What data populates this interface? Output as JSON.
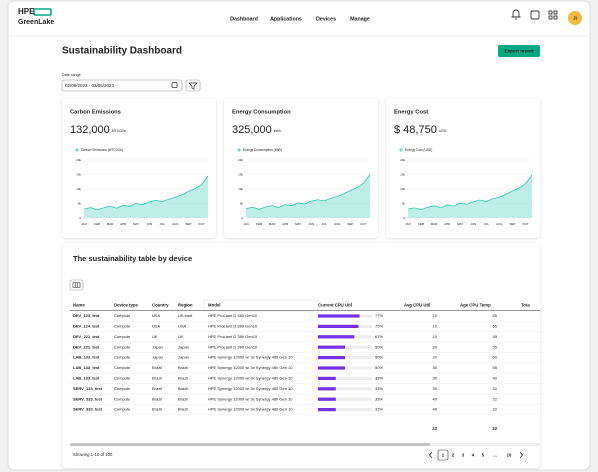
{
  "header": {
    "logo": [
      "HPE",
      "GreenLake"
    ],
    "nav": [
      "Dashboard",
      "Applications",
      "Devices",
      "Manage"
    ],
    "avatar": "JI"
  },
  "page": {
    "title": "Sustainability Dashboard",
    "export_button": "Export report",
    "date_label": "Date range",
    "date_value": "02/06/2023 - 03/06/2023"
  },
  "cards": [
    {
      "title": "Carbon Emissions",
      "value": "132,000",
      "unit": "MTCO2e",
      "chart": {
        "type": "area",
        "legend": "Carbon Emissions (MTCO2e)",
        "color": "#6fdcc8",
        "categories": [
          "JAN",
          null,
          "FEB",
          null,
          "MAR",
          null,
          "APR",
          null,
          "MAY",
          null,
          "JUN",
          null,
          "JUL",
          null,
          "AUG",
          null,
          "SEP",
          null,
          "OCT",
          null
        ],
        "values": [
          3000,
          3600,
          2800,
          3500,
          4100,
          3400,
          4400,
          4000,
          5000,
          4600,
          5500,
          6100,
          5600,
          6500,
          7100,
          8000,
          9200,
          10100,
          11500,
          14500
        ],
        "ylim": [
          0,
          20000
        ],
        "yticks": [
          0,
          {
            "value": 5000,
            "label": "5k"
          },
          {
            "value": 10000,
            "label": "10k"
          },
          {
            "value": 15000,
            "label": "15k"
          },
          {
            "value": 20000,
            "label": "20k"
          }
        ]
      }
    },
    {
      "title": "Energy Consumption",
      "value": "325,000",
      "unit": "kWh",
      "chart": {
        "type": "area",
        "legend": "Energy Consumption (kWh)",
        "color": "#6fdcc8",
        "categories": [
          "JAN",
          null,
          "FEB",
          null,
          "MAR",
          null,
          "APR",
          null,
          "MAY",
          null,
          "JUN",
          null,
          "JUL",
          null,
          "AUG",
          null,
          "SEP",
          null,
          "OCT",
          null
        ],
        "values": [
          3200,
          3700,
          3000,
          3800,
          4300,
          3600,
          4600,
          4300,
          5200,
          4800,
          5800,
          6300,
          5900,
          6800,
          7400,
          8400,
          9500,
          10500,
          12000,
          15000
        ],
        "ylim": [
          0,
          20000
        ],
        "yticks": [
          0,
          {
            "value": 5000,
            "label": "5k"
          },
          {
            "value": 10000,
            "label": "10k"
          },
          {
            "value": 15000,
            "label": "15k"
          },
          {
            "value": 20000,
            "label": "20k"
          }
        ]
      }
    },
    {
      "title": "Energy Cost",
      "value": "$ 48,750",
      "unit": "USD",
      "chart": {
        "type": "area",
        "legend": "Energy Cost (USD)",
        "color": "#6fdcc8",
        "categories": [
          "JAN",
          null,
          "FEB",
          null,
          "MAR",
          null,
          "APR",
          null,
          "MAY",
          null,
          "JUN",
          null,
          "JUL",
          null,
          "AUG",
          null,
          "SEP",
          null,
          "OCT",
          null
        ],
        "values": [
          3100,
          3500,
          2900,
          3700,
          4200,
          3500,
          4500,
          4100,
          5100,
          4700,
          5600,
          6200,
          5700,
          6600,
          7200,
          8200,
          9300,
          10300,
          11800,
          14800
        ],
        "ylim": [
          0,
          20000
        ],
        "yticks": [
          0,
          {
            "value": 5000,
            "label": "5k"
          },
          {
            "value": 10000,
            "label": "10k"
          },
          {
            "value": 15000,
            "label": "15k"
          },
          {
            "value": 20000,
            "label": "20k"
          }
        ]
      }
    }
  ],
  "table": {
    "title": "The sustainability table by device",
    "columns": [
      "Name",
      "Device type",
      "Country",
      "Region",
      "Model",
      "Current CPU Util",
      "Avg CPU Util",
      "Age CPU Temp",
      "Tota"
    ],
    "rows": [
      {
        "name": "DEV_123_test",
        "type": "Compute",
        "country": "USA",
        "region": "US east",
        "model": "HPE ProLiant D 380 Gen10",
        "cpu": 77,
        "cpu_label": "77%",
        "avg": 10,
        "temp": 55
      },
      {
        "name": "DEV_124_test",
        "type": "Compute",
        "country": "USA",
        "region": "USA",
        "model": "HPE ProLiant D 380 Gen10",
        "cpu": 75,
        "cpu_label": "75%",
        "avg": 10,
        "temp": 55
      },
      {
        "name": "DEV_221_test",
        "type": "Compute",
        "country": "UK",
        "region": "UK",
        "model": "HPE ProLiant D 380 Gen10",
        "cpu": 67,
        "cpu_label": "67%",
        "avg": 10,
        "temp": 55
      },
      {
        "name": "DEV_221_test",
        "type": "Compute",
        "country": "Japan",
        "region": "Japan",
        "model": "HPE ProLiant D 380 Gen10",
        "cpu": 50,
        "cpu_label": "50%",
        "avg": 20,
        "temp": 55
      },
      {
        "name": "LAB_133_test",
        "type": "Compute",
        "country": "Japan",
        "region": "Japan",
        "model": "HPE Synergy 12000 w/ 3x Synergy 480 Gen 10",
        "cpu": 50,
        "cpu_label": "50%",
        "avg": 20,
        "temp": 60
      },
      {
        "name": "LAB_133_test",
        "type": "Compute",
        "country": "Brazil",
        "region": "Brazil",
        "model": "HPE Synergy 12000 w/ 3x Synergy 480 Gen 10",
        "cpu": 50,
        "cpu_label": "50%",
        "avg": 30,
        "temp": 55
      },
      {
        "name": "LAB_133_test",
        "type": "Compute",
        "country": "Brazil",
        "region": "Brazil",
        "model": "HPE Synergy 12000 w/ 3x Synergy 480 Gen 10",
        "cpu": 33,
        "cpu_label": "33%",
        "avg": 30,
        "temp": 40
      },
      {
        "name": "SERV_123_test",
        "type": "Compute",
        "country": "Brazil",
        "region": "Brazil",
        "model": "HPE Synergy 12000 w/ 3x Synergy 480 Gen 10",
        "cpu": 33,
        "cpu_label": "33%",
        "avg": 30,
        "temp": 40
      },
      {
        "name": "SERV_333_test",
        "type": "Compute",
        "country": "Brazil",
        "region": "Brazil",
        "model": "HPE Synergy 12000 w/ 3x Synergy 480 Gen 10",
        "cpu": 33,
        "cpu_label": "33%",
        "avg": 40,
        "temp": 22
      },
      {
        "name": "SERV_333_test",
        "type": "Compute",
        "country": "Brazil",
        "region": "Brazil",
        "model": "HPE Synergy 12000 w/ 3x Synergy 480 Gen 10",
        "cpu": 33,
        "cpu_label": "33%",
        "avg": 40,
        "temp": 22
      }
    ],
    "totals": [
      22,
      22
    ],
    "footer": "Showing 1-10 of 100",
    "pages": [
      "1",
      "2",
      "3",
      "4",
      "5",
      "...",
      "10"
    ]
  }
}
